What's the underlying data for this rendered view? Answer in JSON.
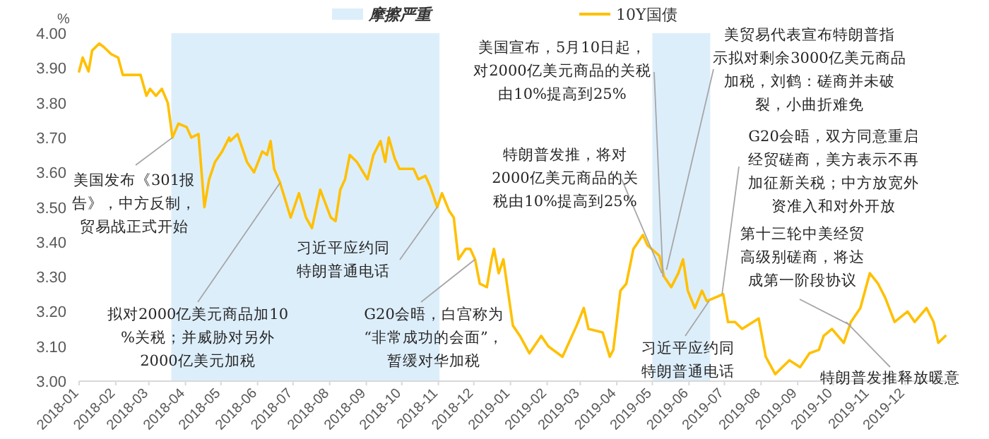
{
  "chart_data": {
    "type": "line",
    "ylabel": "%",
    "legend": "top",
    "xlim": [
      "2018-01-01",
      "2020-01-05"
    ],
    "xticks": [
      "2018-01",
      "2018-02",
      "2018-03",
      "2018-04",
      "2018-05",
      "2018-06",
      "2018-07",
      "2018-08",
      "2018-09",
      "2018-10",
      "2018-11",
      "2018-12",
      "2019-01",
      "2019-02",
      "2019-03",
      "2019-04",
      "2019-05",
      "2019-06",
      "2019-07",
      "2019-08",
      "2019-09",
      "2019-10",
      "2019-11",
      "2019-12"
    ],
    "ylim": [
      3.0,
      4.0
    ],
    "yticks": [
      {
        "value": 3.0,
        "label": "3.00"
      },
      {
        "value": 3.1,
        "label": "3.10"
      },
      {
        "value": 3.2,
        "label": "3.20"
      },
      {
        "value": 3.3,
        "label": "3.30"
      },
      {
        "value": 3.4,
        "label": "3.40"
      },
      {
        "value": 3.5,
        "label": "3.50"
      },
      {
        "value": 3.6,
        "label": "3.60"
      },
      {
        "value": 3.7,
        "label": "3.70"
      },
      {
        "value": 3.8,
        "label": "3.80"
      },
      {
        "value": 3.9,
        "label": "3.90"
      },
      {
        "value": 4.0,
        "label": "4.00"
      }
    ],
    "bands": [
      {
        "axis": "x",
        "from": "2018-03-20",
        "to": "2018-11-02",
        "label": "摩擦严重",
        "color": "#ddeefb"
      },
      {
        "axis": "x",
        "from": "2019-05-01",
        "to": "2019-06-19",
        "color": "#ddeefb"
      }
    ],
    "series": [
      {
        "name": "10Y国债",
        "color": "#ffc000",
        "x": [
          "2018-01-01",
          "2018-01-04",
          "2018-01-09",
          "2018-01-12",
          "2018-01-18",
          "2018-01-22",
          "2018-01-28",
          "2018-02-03",
          "2018-02-07",
          "2018-02-22",
          "2018-02-27",
          "2018-03-02",
          "2018-03-07",
          "2018-03-12",
          "2018-03-17",
          "2018-03-21",
          "2018-03-26",
          "2018-04-02",
          "2018-04-06",
          "2018-04-12",
          "2018-04-17",
          "2018-04-21",
          "2018-04-26",
          "2018-05-02",
          "2018-05-08",
          "2018-05-09",
          "2018-05-15",
          "2018-05-19",
          "2018-05-23",
          "2018-05-29",
          "2018-06-05",
          "2018-06-09",
          "2018-06-12",
          "2018-06-15",
          "2018-06-20",
          "2018-06-29",
          "2018-07-06",
          "2018-07-12",
          "2018-07-17",
          "2018-07-24",
          "2018-08-02",
          "2018-08-06",
          "2018-08-10",
          "2018-08-14",
          "2018-08-18",
          "2018-08-24",
          "2018-09-02",
          "2018-09-07",
          "2018-09-13",
          "2018-09-17",
          "2018-09-20",
          "2018-09-25",
          "2018-09-29",
          "2018-10-11",
          "2018-10-15",
          "2018-10-21",
          "2018-10-25",
          "2018-10-31",
          "2018-11-04",
          "2018-11-10",
          "2018-11-14",
          "2018-11-18",
          "2018-11-24",
          "2018-11-28",
          "2018-12-02",
          "2018-12-06",
          "2018-12-12",
          "2018-12-16",
          "2018-12-18",
          "2018-12-22",
          "2018-12-26",
          "2019-01-03",
          "2019-01-09",
          "2019-01-17",
          "2019-01-27",
          "2019-02-02",
          "2019-02-14",
          "2019-02-26",
          "2019-03-04",
          "2019-03-08",
          "2019-03-20",
          "2019-03-26",
          "2019-03-29",
          "2019-04-04",
          "2019-04-09",
          "2019-04-15",
          "2019-04-23",
          "2019-04-27",
          "2019-05-07",
          "2019-05-11",
          "2019-05-17",
          "2019-05-23",
          "2019-05-27",
          "2019-05-31",
          "2019-06-06",
          "2019-06-12",
          "2019-06-16",
          "2019-06-30",
          "2019-07-04",
          "2019-07-10",
          "2019-07-16",
          "2019-07-30",
          "2019-08-05",
          "2019-08-13",
          "2019-08-19",
          "2019-08-25",
          "2019-09-03",
          "2019-09-11",
          "2019-09-19",
          "2019-09-23",
          "2019-09-30",
          "2019-10-10",
          "2019-10-16",
          "2019-10-24",
          "2019-11-01",
          "2019-11-08",
          "2019-11-14",
          "2019-11-22",
          "2019-12-03",
          "2019-12-09",
          "2019-12-19",
          "2019-12-25",
          "2019-12-29",
          "2020-01-04"
        ],
        "values": [
          3.89,
          3.93,
          3.89,
          3.95,
          3.97,
          3.96,
          3.94,
          3.93,
          3.88,
          3.88,
          3.82,
          3.84,
          3.82,
          3.84,
          3.8,
          3.7,
          3.74,
          3.73,
          3.7,
          3.71,
          3.5,
          3.58,
          3.63,
          3.66,
          3.7,
          3.69,
          3.71,
          3.67,
          3.63,
          3.6,
          3.66,
          3.65,
          3.69,
          3.61,
          3.57,
          3.47,
          3.54,
          3.47,
          3.44,
          3.55,
          3.47,
          3.46,
          3.55,
          3.58,
          3.65,
          3.63,
          3.58,
          3.65,
          3.69,
          3.63,
          3.7,
          3.64,
          3.61,
          3.61,
          3.58,
          3.59,
          3.56,
          3.5,
          3.54,
          3.49,
          3.47,
          3.35,
          3.38,
          3.38,
          3.35,
          3.28,
          3.27,
          3.35,
          3.38,
          3.31,
          3.35,
          3.16,
          3.13,
          3.08,
          3.13,
          3.1,
          3.07,
          3.16,
          3.21,
          3.15,
          3.14,
          3.07,
          3.09,
          3.26,
          3.28,
          3.38,
          3.42,
          3.39,
          3.36,
          3.3,
          3.27,
          3.31,
          3.35,
          3.26,
          3.21,
          3.26,
          3.23,
          3.25,
          3.17,
          3.17,
          3.15,
          3.18,
          3.07,
          3.02,
          3.04,
          3.06,
          3.04,
          3.08,
          3.09,
          3.13,
          3.15,
          3.11,
          3.17,
          3.21,
          3.31,
          3.28,
          3.24,
          3.17,
          3.2,
          3.17,
          3.21,
          3.17,
          3.11,
          3.13
        ]
      }
    ],
    "annotations": [
      {
        "text": "美国发布《301报告》，中方反制，贸易战正式开始",
        "x": "2018-03-21",
        "y": 3.7
      },
      {
        "text": "拟对2000亿美元商品加10%关税；并威胁对另外2000亿美元加税",
        "x": "2018-06-20",
        "y": 3.57
      },
      {
        "text": "习近平应约同特朗普通电话",
        "x": "2018-10-31",
        "y": 3.5
      },
      {
        "text": "G20会晤，白宫称为“非常成功的会面”，暂缓对华加税",
        "x": "2018-12-02",
        "y": 3.35
      },
      {
        "text": "特朗普发推，将对2000亿美元商品的关税由10%提高到25%",
        "x": "2019-05-09",
        "y": 3.31
      },
      {
        "text": "美国宣布，5月10日起，对2000亿美元商品的关税由10%提高到25%",
        "x": "2019-05-10",
        "y": 3.3
      },
      {
        "text": "美贸易代表宣布特朗普指示拟对剩余3000亿美元商品加税，刘鹤：磋商并未破裂，小曲折难免",
        "x": "2019-05-13",
        "y": 3.32
      },
      {
        "text": "G20会晤，双方同意重启经贸磋商，美方表示不再加征新关税；中方放宽外资准入和对外开放",
        "x": "2019-06-29",
        "y": 3.25
      },
      {
        "text": "第十三轮中美经贸高级别磋商，将达成第一阶段协议",
        "x": "2019-10-16",
        "y": 3.16
      },
      {
        "text": "习近平应约同特朗普通电话",
        "x": "2019-06-18",
        "y": 3.23
      },
      {
        "text": "特朗普发推释放暖意",
        "x": "2019-10-12",
        "y": 3.17
      }
    ]
  }
}
